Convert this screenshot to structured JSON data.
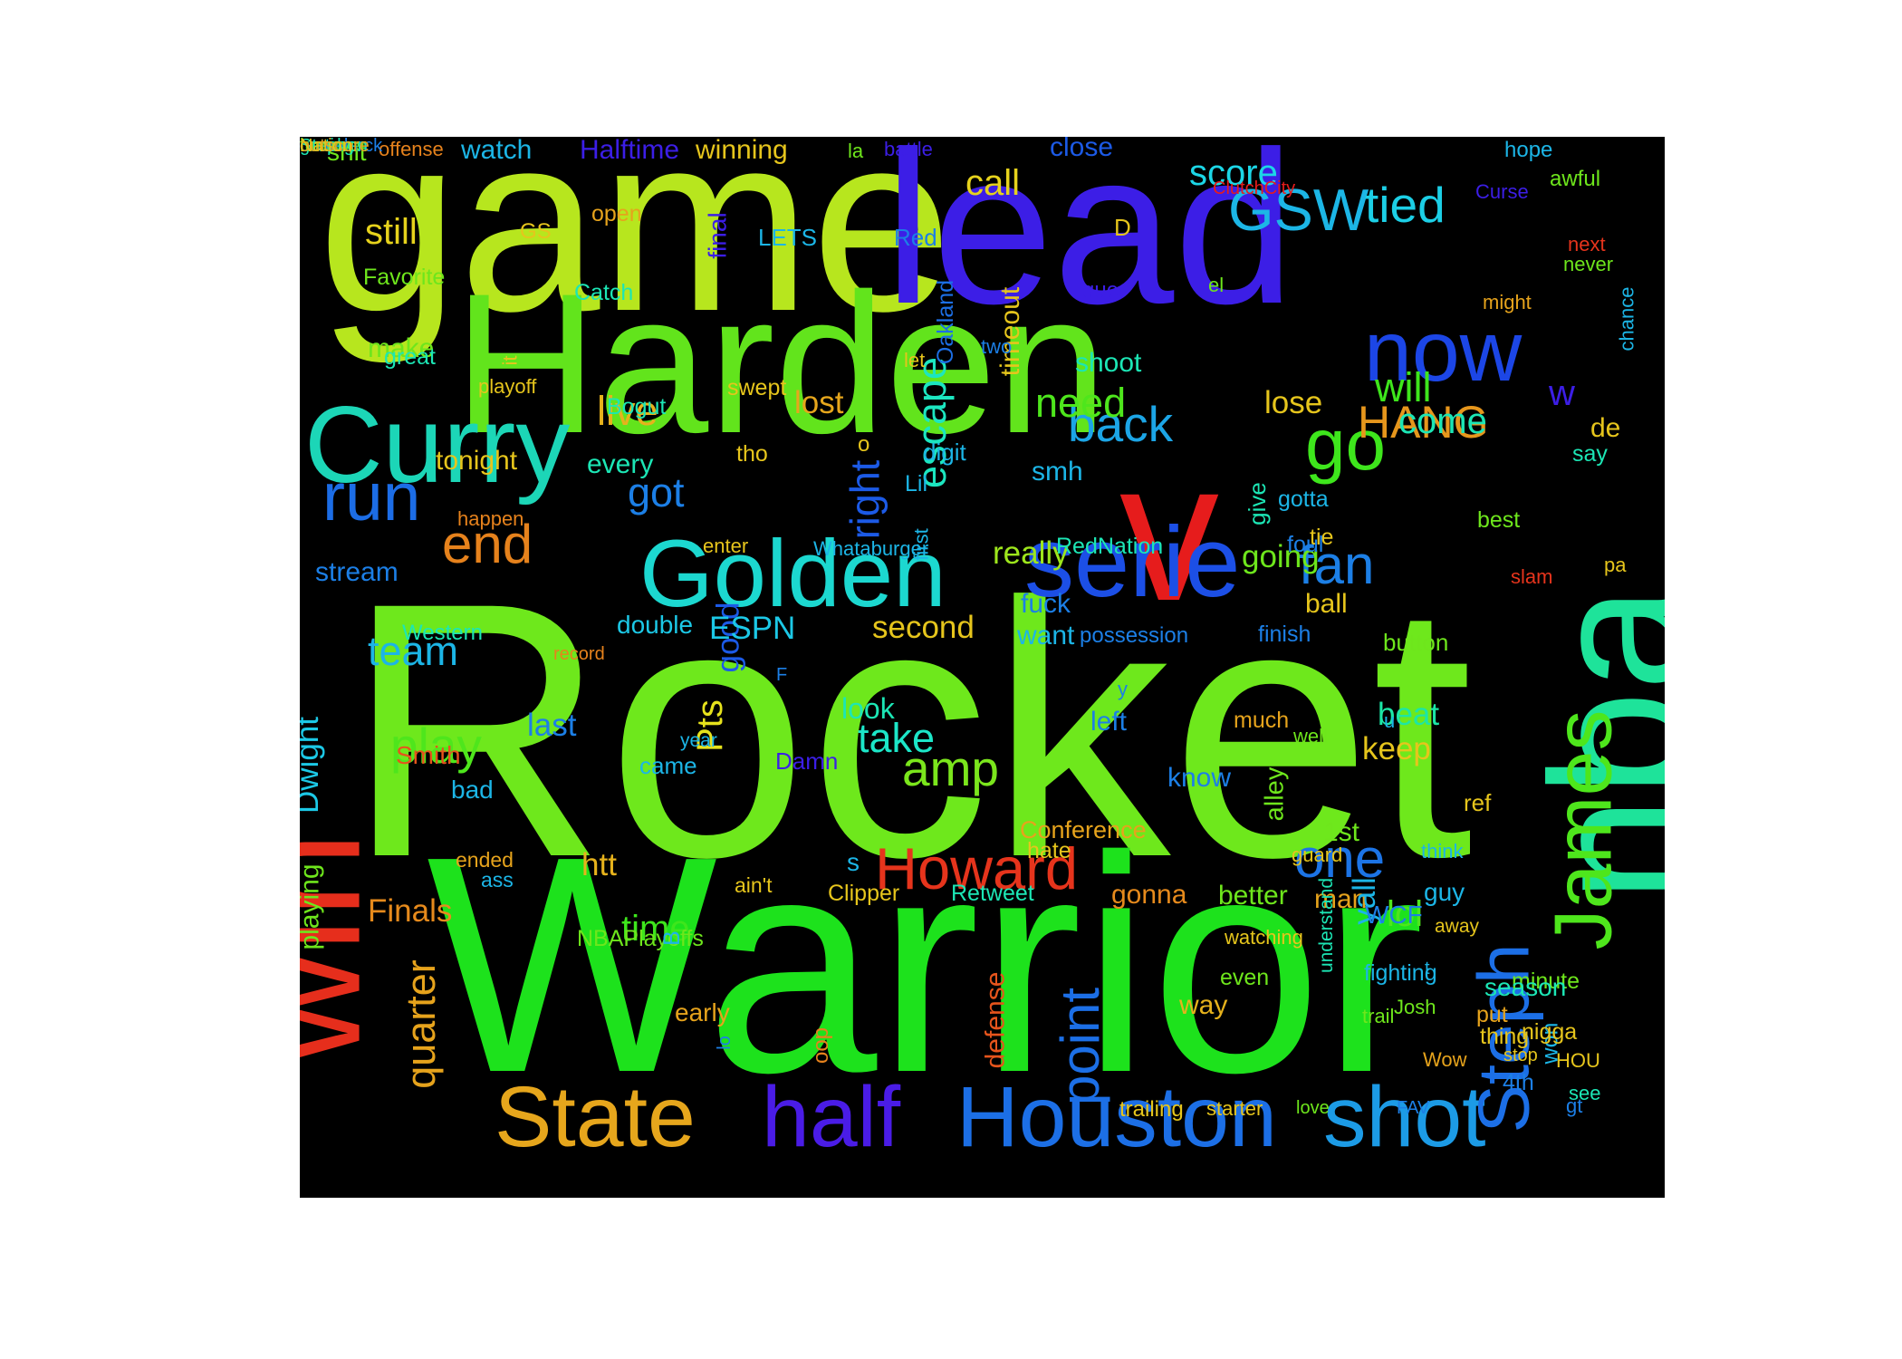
{
  "canvas": {
    "background": "#000000"
  },
  "words": [
    {
      "text": "Rocket",
      "color": "#6ee81c"
    },
    {
      "text": "Warrior",
      "color": "#1de21c"
    },
    {
      "text": "game",
      "color": "#b7e61e"
    },
    {
      "text": "Harden",
      "color": "#62e41c"
    },
    {
      "text": "lead",
      "color": "#3c1ee6"
    },
    {
      "text": "nba",
      "color": "#1ee39a"
    },
    {
      "text": "win",
      "color": "#e62e1c"
    },
    {
      "text": "v",
      "color": "#e61c1c"
    },
    {
      "text": "Curry",
      "color": "#1cd6b7"
    },
    {
      "text": "Golden",
      "color": "#1cd8d0"
    },
    {
      "text": "serie",
      "color": "#1c4fe6"
    },
    {
      "text": "now",
      "color": "#1c46e6"
    },
    {
      "text": "State",
      "color": "#e6a61c"
    },
    {
      "text": "half",
      "color": "#4a1ce6"
    },
    {
      "text": "Houston",
      "color": "#1c6fe6"
    },
    {
      "text": "shot",
      "color": "#1c9be6"
    },
    {
      "text": "James",
      "color": "#4ee61c"
    },
    {
      "text": "Steph",
      "color": "#1c6fe6"
    },
    {
      "text": "Howard",
      "color": "#e6341c"
    },
    {
      "text": "run",
      "color": "#1c6de6"
    },
    {
      "text": "go",
      "color": "#3ee61c"
    },
    {
      "text": "GSW",
      "color": "#1cb6e6"
    },
    {
      "text": "tied",
      "color": "#1ccfe6"
    },
    {
      "text": "back",
      "color": "#1ca5e6"
    },
    {
      "text": "one",
      "color": "#1c74e6"
    },
    {
      "text": "fan",
      "color": "#1c7fe6"
    },
    {
      "text": "play",
      "color": "#4ee61c"
    },
    {
      "text": "amp",
      "color": "#7be61c"
    },
    {
      "text": "end",
      "color": "#e6821c"
    },
    {
      "text": "point",
      "color": "#1c6fe6"
    },
    {
      "text": "right",
      "color": "#1c5ae6"
    },
    {
      "text": "escape",
      "color": "#1ce6c0"
    },
    {
      "text": "HANG",
      "color": "#e6961c"
    },
    {
      "text": "live",
      "color": "#e6b21c"
    },
    {
      "text": "still",
      "color": "#e6d21c"
    },
    {
      "text": "quarter",
      "color": "#e6a31c"
    },
    {
      "text": "Pts",
      "color": "#e6e21c"
    },
    {
      "text": "take",
      "color": "#1ce6c8"
    },
    {
      "text": "need",
      "color": "#4ee61c"
    },
    {
      "text": "lost",
      "color": "#e6a61c"
    },
    {
      "text": "lose",
      "color": "#e6c51c"
    },
    {
      "text": "will",
      "color": "#3ee61c"
    },
    {
      "text": "come",
      "color": "#1ce6b5"
    },
    {
      "text": "got",
      "color": "#1c7fe6"
    },
    {
      "text": "team",
      "color": "#1cb5e6"
    },
    {
      "text": "Dwight",
      "color": "#1cc8e6"
    },
    {
      "text": "good",
      "color": "#1c5ae6"
    },
    {
      "text": "call",
      "color": "#e6d21c"
    },
    {
      "text": "score",
      "color": "#1cd6e6"
    },
    {
      "text": "lol",
      "color": "#4ee61c"
    },
    {
      "text": "time",
      "color": "#3ee61c"
    },
    {
      "text": "Finals",
      "color": "#e68a1c"
    },
    {
      "text": "really",
      "color": "#9de61c"
    },
    {
      "text": "going",
      "color": "#6ee61c"
    },
    {
      "text": "ESPN",
      "color": "#1cc8e6"
    },
    {
      "text": "second",
      "color": "#e6c51c"
    },
    {
      "text": "beat",
      "color": "#1ce6a6"
    },
    {
      "text": "last",
      "color": "#1c7fe6"
    },
    {
      "text": "htt",
      "color": "#e6b21c"
    },
    {
      "text": "man",
      "color": "#e6a31c"
    },
    {
      "text": "better",
      "color": "#6ee61c"
    },
    {
      "text": "gonna",
      "color": "#e68a1c"
    },
    {
      "text": "way",
      "color": "#e6b21c"
    },
    {
      "text": "stream",
      "color": "#1c7fe6"
    },
    {
      "text": "every",
      "color": "#1ce6b5"
    },
    {
      "text": "tonight",
      "color": "#e6c51c"
    },
    {
      "text": "playing",
      "color": "#6ee61c"
    },
    {
      "text": "Smith",
      "color": "#e6541c"
    },
    {
      "text": "ball",
      "color": "#e6c51c"
    },
    {
      "text": "double",
      "color": "#1cc8e6"
    },
    {
      "text": "defense",
      "color": "#e6541c"
    },
    {
      "text": "make",
      "color": "#6ee61c"
    },
    {
      "text": "watch",
      "color": "#1cb5e6"
    },
    {
      "text": "Halftime",
      "color": "#3c1ee6"
    },
    {
      "text": "winning",
      "color": "#e6c51c"
    },
    {
      "text": "close",
      "color": "#1c5ae6"
    },
    {
      "text": "timeout",
      "color": "#e6c51c"
    },
    {
      "text": "final",
      "color": "#3c1ee6"
    },
    {
      "text": "shit",
      "color": "#6ee61c"
    },
    {
      "text": "offense",
      "color": "#e6821c"
    },
    {
      "text": "la",
      "color": "#6ee61c"
    },
    {
      "text": "battle",
      "color": "#3c1ee6"
    },
    {
      "text": "hope",
      "color": "#1cb5e6"
    },
    {
      "text": "awful",
      "color": "#6ee61c"
    },
    {
      "text": "ClutchCity",
      "color": "#e61c1c"
    },
    {
      "text": "Curse",
      "color": "#3c1ee6"
    },
    {
      "text": "next",
      "color": "#e6341c"
    },
    {
      "text": "never",
      "color": "#6ee61c"
    },
    {
      "text": "chance",
      "color": "#1cb5e6"
    },
    {
      "text": "might",
      "color": "#e6a31c"
    },
    {
      "text": "el",
      "color": "#6ee61c"
    },
    {
      "text": "que",
      "color": "#3c1ee6"
    },
    {
      "text": "D",
      "color": "#e6c51c"
    },
    {
      "text": "Red",
      "color": "#1c7fe6"
    },
    {
      "text": "LETS",
      "color": "#1cb5e6"
    },
    {
      "text": "open",
      "color": "#e6a31c"
    },
    {
      "text": "GS",
      "color": "#e6c51c"
    },
    {
      "text": "Favorite",
      "color": "#6ee61c"
    },
    {
      "text": "Catch",
      "color": "#1ce6b5"
    },
    {
      "text": "Oakland",
      "color": "#1c6fe6"
    },
    {
      "text": "two",
      "color": "#1c7fe6"
    },
    {
      "text": "let",
      "color": "#e6c51c"
    },
    {
      "text": "shoot",
      "color": "#1ce6b5"
    },
    {
      "text": "great",
      "color": "#1ce6b5"
    },
    {
      "text": "it",
      "color": "#e6c51c"
    },
    {
      "text": "playoff",
      "color": "#e6c51c"
    },
    {
      "text": "swept",
      "color": "#e6c51c"
    },
    {
      "text": "Bogut",
      "color": "#1ce6b5"
    },
    {
      "text": "o",
      "color": "#e6c51c"
    },
    {
      "text": "digit",
      "color": "#1cb5e6"
    },
    {
      "text": "w",
      "color": "#3c1ee6"
    },
    {
      "text": "de",
      "color": "#e6c51c"
    },
    {
      "text": "say",
      "color": "#1ce6b5"
    },
    {
      "text": "tho",
      "color": "#e6c51c"
    },
    {
      "text": "Lil",
      "color": "#1cb5e6"
    },
    {
      "text": "smh",
      "color": "#1cb5e6"
    },
    {
      "text": "give",
      "color": "#1ce6b5"
    },
    {
      "text": "gotta",
      "color": "#1cb5e6"
    },
    {
      "text": "tie",
      "color": "#e6c51c"
    },
    {
      "text": "foul",
      "color": "#1c7fe6"
    },
    {
      "text": "best",
      "color": "#6ee61c"
    },
    {
      "text": "happen",
      "color": "#e6821c"
    },
    {
      "text": "enter",
      "color": "#e6c51c"
    },
    {
      "text": "first",
      "color": "#1cb5e6"
    },
    {
      "text": "Whataburger",
      "color": "#1cb5e6"
    },
    {
      "text": "RedNation",
      "color": "#1ce6b5"
    },
    {
      "text": "slam",
      "color": "#e6341c"
    },
    {
      "text": "pa",
      "color": "#e6c51c"
    },
    {
      "text": "fuck",
      "color": "#1c7fe6"
    },
    {
      "text": "want",
      "color": "#1cb5e6"
    },
    {
      "text": "possession",
      "color": "#1c7fe6"
    },
    {
      "text": "finish",
      "color": "#1c7fe6"
    },
    {
      "text": "button",
      "color": "#6ee61c"
    },
    {
      "text": "Western",
      "color": "#1ce6b5"
    },
    {
      "text": "record",
      "color": "#e6821c"
    },
    {
      "text": "F",
      "color": "#1c7fe6"
    },
    {
      "text": "y",
      "color": "#1c7fe6"
    },
    {
      "text": "look",
      "color": "#1ce6b5"
    },
    {
      "text": "left",
      "color": "#1c7fe6"
    },
    {
      "text": "much",
      "color": "#e6a31c"
    },
    {
      "text": "well",
      "color": "#6ee61c"
    },
    {
      "text": "u",
      "color": "#1cb5e6"
    },
    {
      "text": "keep",
      "color": "#e6c51c"
    },
    {
      "text": "year",
      "color": "#1cb5e6"
    },
    {
      "text": "came",
      "color": "#1cb5e6"
    },
    {
      "text": "Damn",
      "color": "#3c1ee6"
    },
    {
      "text": "know",
      "color": "#1c7fe6"
    },
    {
      "text": "alley",
      "color": "#6ee61c"
    },
    {
      "text": "bad",
      "color": "#1cb5e6"
    },
    {
      "text": "ref",
      "color": "#e6c51c"
    },
    {
      "text": "Conference",
      "color": "#e6a31c"
    },
    {
      "text": "1st",
      "color": "#6ee61c"
    },
    {
      "text": "hate",
      "color": "#e6c51c"
    },
    {
      "text": "guard",
      "color": "#e6c51c"
    },
    {
      "text": "s",
      "color": "#1cb5e6"
    },
    {
      "text": "Clipper",
      "color": "#e6c51c"
    },
    {
      "text": "think",
      "color": "#1cb5e6"
    },
    {
      "text": "yall",
      "color": "#1cb5e6"
    },
    {
      "text": "guy",
      "color": "#1cb5e6"
    },
    {
      "text": "ended",
      "color": "#e6a31c"
    },
    {
      "text": "ass",
      "color": "#1cb5e6"
    },
    {
      "text": "ain't",
      "color": "#e6c51c"
    },
    {
      "text": "understand",
      "color": "#1ce6b5"
    },
    {
      "text": "Retweet",
      "color": "#1ce6b5"
    },
    {
      "text": "WCF",
      "color": "#1c7fe6"
    },
    {
      "text": "away",
      "color": "#e6c51c"
    },
    {
      "text": "watching",
      "color": "#e6c51c"
    },
    {
      "text": "NBAPlayoffs",
      "color": "#6ee61c"
    },
    {
      "text": "B",
      "color": "#1cb5e6"
    },
    {
      "text": "t",
      "color": "#1cb5e6"
    },
    {
      "text": "fighting",
      "color": "#1cb5e6"
    },
    {
      "text": "minute",
      "color": "#6ee61c"
    },
    {
      "text": "trail",
      "color": "#6ee61c"
    },
    {
      "text": "won",
      "color": "#1cb5e6"
    },
    {
      "text": "even",
      "color": "#6ee61c"
    },
    {
      "text": "season",
      "color": "#1ce6b5"
    },
    {
      "text": "put",
      "color": "#e6a31c"
    },
    {
      "text": "Josh",
      "color": "#6ee61c"
    },
    {
      "text": "lo",
      "color": "#1c7fe6"
    },
    {
      "text": "early",
      "color": "#e6a31c"
    },
    {
      "text": "oop",
      "color": "#e6821c"
    },
    {
      "text": "4th",
      "color": "#1c7fe6"
    },
    {
      "text": "see",
      "color": "#1ce6b5"
    },
    {
      "text": "HOU",
      "color": "#e6c51c"
    },
    {
      "text": "Wow",
      "color": "#e6a31c"
    },
    {
      "text": "nigga",
      "color": "#e6c51c"
    },
    {
      "text": "thing",
      "color": "#e6c51c"
    },
    {
      "text": "stop",
      "color": "#e6c51c"
    },
    {
      "text": "trailing",
      "color": "#e6c51c"
    },
    {
      "text": "starter",
      "color": "#e6c51c"
    },
    {
      "text": "love",
      "color": "#6ee61c"
    },
    {
      "text": "FAV",
      "color": "#1c7fe6"
    },
    {
      "text": "gt",
      "color": "#1c7fe6"
    },
    {
      "text": "getting",
      "color": "#1ce6b5"
    },
    {
      "text": "home",
      "color": "#6ee61c"
    },
    {
      "text": "comeback",
      "color": "#1c7fe6"
    },
    {
      "text": "turnover",
      "color": "#6ee61c"
    },
    {
      "text": "Stephen",
      "color": "#1ce6b5"
    },
    {
      "text": "outscore",
      "color": "#e6a31c"
    },
    {
      "text": "Nation",
      "color": "#e6c51c"
    }
  ]
}
